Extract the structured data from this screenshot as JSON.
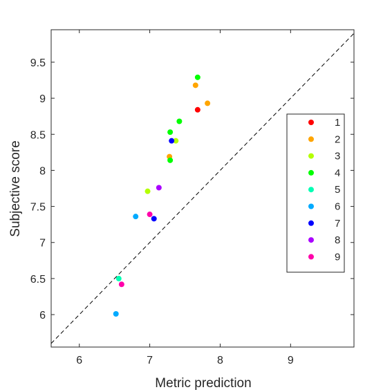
{
  "chart_data": {
    "type": "scatter",
    "title": "",
    "xlabel": "Metric prediction",
    "ylabel": "Subjective score",
    "xlim": [
      5.6,
      9.9
    ],
    "ylim": [
      5.55,
      9.95
    ],
    "xticks": [
      6,
      7,
      8,
      9
    ],
    "yticks": [
      6,
      6.5,
      7,
      7.5,
      8,
      8.5,
      9,
      9.5
    ],
    "xtick_labels": [
      "6",
      "7",
      "8",
      "9"
    ],
    "ytick_labels": [
      "6",
      "6.5",
      "7",
      "7.5",
      "8",
      "8.5",
      "9",
      "9.5"
    ],
    "grid": false,
    "legend_position": "right",
    "reference_line": "y = x (dashed)",
    "series": [
      {
        "name": "1",
        "color": "#ff0000",
        "points": [
          [
            7.68,
            8.84
          ]
        ]
      },
      {
        "name": "2",
        "color": "#ffa500",
        "points": [
          [
            7.65,
            9.18
          ],
          [
            7.82,
            8.93
          ],
          [
            7.28,
            8.19
          ]
        ]
      },
      {
        "name": "3",
        "color": "#b4ff00",
        "points": [
          [
            7.37,
            8.41
          ],
          [
            6.97,
            7.71
          ]
        ]
      },
      {
        "name": "4",
        "color": "#00ff00",
        "points": [
          [
            7.68,
            9.29
          ],
          [
            7.42,
            8.68
          ],
          [
            7.29,
            8.53
          ],
          [
            7.29,
            8.14
          ]
        ]
      },
      {
        "name": "5",
        "color": "#00ffb4",
        "points": [
          [
            6.56,
            6.5
          ]
        ]
      },
      {
        "name": "6",
        "color": "#00aaff",
        "points": [
          [
            6.8,
            7.36
          ],
          [
            6.52,
            6.01
          ]
        ]
      },
      {
        "name": "7",
        "color": "#0000ff",
        "points": [
          [
            7.31,
            8.41
          ],
          [
            7.06,
            7.33
          ]
        ]
      },
      {
        "name": "8",
        "color": "#aa00ff",
        "points": [
          [
            7.13,
            7.76
          ]
        ]
      },
      {
        "name": "9",
        "color": "#ff00aa",
        "points": [
          [
            7.0,
            7.39
          ],
          [
            6.6,
            6.42
          ]
        ]
      }
    ]
  }
}
